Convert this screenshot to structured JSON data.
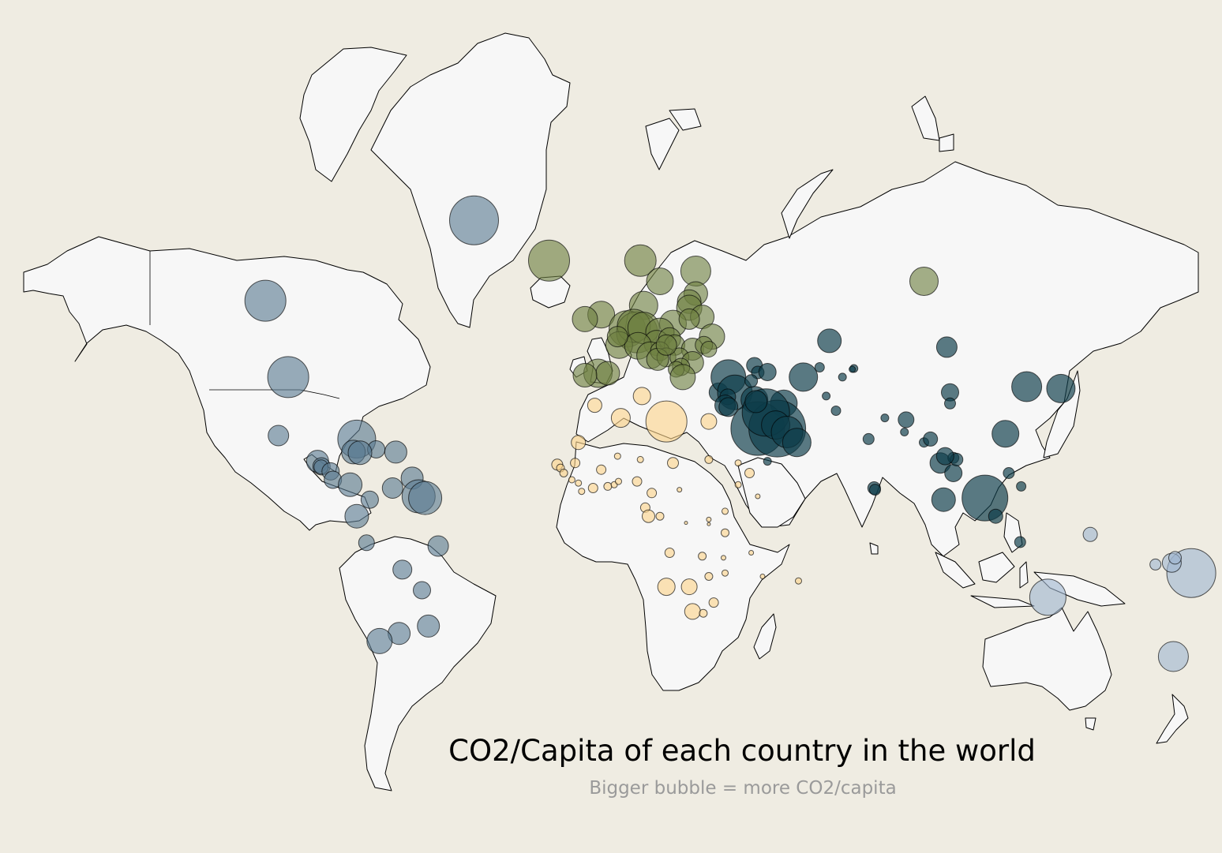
{
  "title": "CO2/Capita of each country in the world",
  "subtitle": "Bigger bubble = more CO2/capita",
  "colors": {
    "background": "#efece2",
    "land": "#f7f7f7",
    "americas": "#5a7a91",
    "europe": "#6d8040",
    "africa": "#fcd38a",
    "asia": "#0e3d4a",
    "oceania": "#9fb6d1"
  },
  "chart_data": {
    "type": "bubble-map",
    "title": "CO2/Capita of each country in the world",
    "subtitle": "Bigger bubble = more CO2/capita",
    "encoding": {
      "size": "CO2/capita (relative)",
      "color": "region"
    },
    "regions": [
      {
        "name": "americas",
        "bubbles": [
          {
            "lon": -42,
            "lat": 72,
            "v": 31
          },
          {
            "lon": -106,
            "lat": 57,
            "v": 26
          },
          {
            "lon": -99,
            "lat": 39,
            "v": 26
          },
          {
            "lon": -102,
            "lat": 23,
            "v": 13
          },
          {
            "lon": -78,
            "lat": 22,
            "v": 24
          },
          {
            "lon": -79,
            "lat": 18.2,
            "v": 15
          },
          {
            "lon": -72,
            "lat": 19,
            "v": 11
          },
          {
            "lon": -77,
            "lat": 18,
            "v": 15
          },
          {
            "lon": -66,
            "lat": 18.2,
            "v": 14
          },
          {
            "lon": -90,
            "lat": 15.5,
            "v": 14
          },
          {
            "lon": -88.8,
            "lat": 14,
            "v": 11
          },
          {
            "lon": -88.9,
            "lat": 13.8,
            "v": 9
          },
          {
            "lon": -86,
            "lat": 12.5,
            "v": 11
          },
          {
            "lon": -85.3,
            "lat": 10,
            "v": 11
          },
          {
            "lon": -80,
            "lat": 8.5,
            "v": 15
          },
          {
            "lon": -67,
            "lat": 7.5,
            "v": 13
          },
          {
            "lon": -61,
            "lat": 10.5,
            "v": 14
          },
          {
            "lon": -59,
            "lat": 5,
            "v": 21
          },
          {
            "lon": -57,
            "lat": 4.5,
            "v": 21
          },
          {
            "lon": -74,
            "lat": 4,
            "v": 11
          },
          {
            "lon": -78,
            "lat": -1,
            "v": 15
          },
          {
            "lon": -75,
            "lat": -9,
            "v": 10
          },
          {
            "lon": -53,
            "lat": -10,
            "v": 13
          },
          {
            "lon": -64,
            "lat": -17,
            "v": 12
          },
          {
            "lon": -58,
            "lat": -23,
            "v": 11
          },
          {
            "lon": -56,
            "lat": -33,
            "v": 14
          },
          {
            "lon": -65,
            "lat": -35,
            "v": 14
          },
          {
            "lon": -71,
            "lat": -37,
            "v": 16
          }
        ]
      },
      {
        "name": "europe",
        "bubbles": [
          {
            "lon": -19,
            "lat": 65,
            "v": 26
          },
          {
            "lon": 9,
            "lat": 65,
            "v": 20
          },
          {
            "lon": 15,
            "lat": 61,
            "v": 17
          },
          {
            "lon": 26,
            "lat": 63,
            "v": 19
          },
          {
            "lon": 96,
            "lat": 61,
            "v": 18
          },
          {
            "lon": 26,
            "lat": 58.5,
            "v": 15
          },
          {
            "lon": 24,
            "lat": 56.8,
            "v": 15
          },
          {
            "lon": 24,
            "lat": 55.5,
            "v": 16
          },
          {
            "lon": 28,
            "lat": 53.5,
            "v": 15
          },
          {
            "lon": 10,
            "lat": 56,
            "v": 18
          },
          {
            "lon": -3,
            "lat": 54,
            "v": 17
          },
          {
            "lon": -8,
            "lat": 53,
            "v": 16
          },
          {
            "lon": 19,
            "lat": 52,
            "v": 17
          },
          {
            "lon": 31,
            "lat": 49,
            "v": 16
          },
          {
            "lon": 5,
            "lat": 50.8,
            "v": 23
          },
          {
            "lon": 8,
            "lat": 50,
            "v": 26
          },
          {
            "lon": 7,
            "lat": 51.5,
            "v": 21
          },
          {
            "lon": 2.5,
            "lat": 47,
            "v": 17
          },
          {
            "lon": 10,
            "lat": 51,
            "v": 20
          },
          {
            "lon": 15,
            "lat": 50,
            "v": 18
          },
          {
            "lon": 14,
            "lat": 47.5,
            "v": 16
          },
          {
            "lon": 18,
            "lat": 48.5,
            "v": 14
          },
          {
            "lon": 19.5,
            "lat": 47,
            "v": 13
          },
          {
            "lon": 25,
            "lat": 46,
            "v": 14
          },
          {
            "lon": 28.5,
            "lat": 47,
            "v": 11
          },
          {
            "lon": 8.3,
            "lat": 46.8,
            "v": 17
          },
          {
            "lon": 12,
            "lat": 44.5,
            "v": 17
          },
          {
            "lon": 15,
            "lat": 45.5,
            "v": 12
          },
          {
            "lon": 17,
            "lat": 44,
            "v": 12
          },
          {
            "lon": 21,
            "lat": 44,
            "v": 12
          },
          {
            "lon": 25,
            "lat": 42.7,
            "v": 14
          },
          {
            "lon": 21.5,
            "lat": 41.6,
            "v": 11
          },
          {
            "lon": 20,
            "lat": 41,
            "v": 10
          },
          {
            "lon": -4,
            "lat": 40,
            "v": 18
          },
          {
            "lon": -1,
            "lat": 40,
            "v": 15
          },
          {
            "lon": -8,
            "lat": 39.5,
            "v": 15
          },
          {
            "lon": 22,
            "lat": 39,
            "v": 16
          },
          {
            "lon": 14.3,
            "lat": 43.5,
            "v": 14
          },
          {
            "lon": 24,
            "lat": 53,
            "v": 13
          },
          {
            "lon": 17,
            "lat": 47,
            "v": 13
          },
          {
            "lon": 2,
            "lat": 49,
            "v": 13
          },
          {
            "lon": 30,
            "lat": 46,
            "v": 10
          }
        ]
      },
      {
        "name": "africa",
        "bubbles": [
          {
            "lon": 17,
            "lat": 27,
            "v": 26
          },
          {
            "lon": -5,
            "lat": 31.5,
            "v": 9
          },
          {
            "lon": 3,
            "lat": 28,
            "v": 12
          },
          {
            "lon": 9.5,
            "lat": 34,
            "v": 11
          },
          {
            "lon": 30,
            "lat": 27,
            "v": 10
          },
          {
            "lon": -10,
            "lat": 21,
            "v": 9
          },
          {
            "lon": -11,
            "lat": 15,
            "v": 6
          },
          {
            "lon": -3,
            "lat": 13,
            "v": 6
          },
          {
            "lon": 2,
            "lat": 17,
            "v": 4
          },
          {
            "lon": 9,
            "lat": 16,
            "v": 4
          },
          {
            "lon": 19,
            "lat": 15,
            "v": 7
          },
          {
            "lon": 30,
            "lat": 16,
            "v": 5
          },
          {
            "lon": 39,
            "lat": 15,
            "v": 4
          },
          {
            "lon": 42.5,
            "lat": 12,
            "v": 6
          },
          {
            "lon": -16.5,
            "lat": 14.5,
            "v": 7
          },
          {
            "lon": -15.5,
            "lat": 13.5,
            "v": 5
          },
          {
            "lon": -14.5,
            "lat": 12,
            "v": 5
          },
          {
            "lon": -12,
            "lat": 10,
            "v": 4
          },
          {
            "lon": -10,
            "lat": 9,
            "v": 4
          },
          {
            "lon": -9,
            "lat": 6.5,
            "v": 4
          },
          {
            "lon": -5.5,
            "lat": 7.5,
            "v": 6
          },
          {
            "lon": -1,
            "lat": 8,
            "v": 5
          },
          {
            "lon": 1,
            "lat": 8.5,
            "v": 4
          },
          {
            "lon": 2.3,
            "lat": 9.5,
            "v": 4
          },
          {
            "lon": 8,
            "lat": 9.5,
            "v": 6
          },
          {
            "lon": 12.5,
            "lat": 6,
            "v": 6
          },
          {
            "lon": 39,
            "lat": 8.5,
            "v": 4
          },
          {
            "lon": 21,
            "lat": 7,
            "v": 3
          },
          {
            "lon": 10.5,
            "lat": 1.6,
            "v": 6
          },
          {
            "lon": 11.5,
            "lat": -1,
            "v": 8
          },
          {
            "lon": 15,
            "lat": -1,
            "v": 5
          },
          {
            "lon": 23,
            "lat": -3,
            "v": 2
          },
          {
            "lon": 30,
            "lat": -2,
            "v": 3
          },
          {
            "lon": 35,
            "lat": 0.5,
            "v": 4
          },
          {
            "lon": 45,
            "lat": 5,
            "v": 3
          },
          {
            "lon": 30,
            "lat": -3.4,
            "v": 2
          },
          {
            "lon": 35,
            "lat": -6,
            "v": 5
          },
          {
            "lon": 18,
            "lat": -12,
            "v": 6
          },
          {
            "lon": 28,
            "lat": -13,
            "v": 5
          },
          {
            "lon": 34.5,
            "lat": -13.5,
            "v": 3
          },
          {
            "lon": 35,
            "lat": -18,
            "v": 4
          },
          {
            "lon": 30,
            "lat": -19,
            "v": 5
          },
          {
            "lon": 17,
            "lat": -22,
            "v": 11
          },
          {
            "lon": 24,
            "lat": -22,
            "v": 10
          },
          {
            "lon": 25,
            "lat": -29,
            "v": 10
          },
          {
            "lon": 31.5,
            "lat": -26.5,
            "v": 6
          },
          {
            "lon": 28.3,
            "lat": -29.5,
            "v": 5
          },
          {
            "lon": 46.5,
            "lat": -19,
            "v": 3
          },
          {
            "lon": 57.5,
            "lat": -20.3,
            "v": 4
          },
          {
            "lon": 43,
            "lat": -12,
            "v": 3
          }
        ]
      },
      {
        "name": "asia",
        "bubbles": [
          {
            "lon": 67,
            "lat": 48,
            "v": 15
          },
          {
            "lon": 103,
            "lat": 46.5,
            "v": 13
          },
          {
            "lon": 104,
            "lat": 35,
            "v": 11
          },
          {
            "lon": 44,
            "lat": 42,
            "v": 10
          },
          {
            "lon": 45,
            "lat": 40.2,
            "v": 8
          },
          {
            "lon": 48,
            "lat": 40.3,
            "v": 11
          },
          {
            "lon": 59,
            "lat": 39,
            "v": 18
          },
          {
            "lon": 64,
            "lat": 41.5,
            "v": 6
          },
          {
            "lon": 71,
            "lat": 39,
            "v": 5
          },
          {
            "lon": 74.5,
            "lat": 41.2,
            "v": 5
          },
          {
            "lon": 74,
            "lat": 41,
            "v": 4
          },
          {
            "lon": 33,
            "lat": 35,
            "v": 12
          },
          {
            "lon": 36,
            "lat": 39,
            "v": 22
          },
          {
            "lon": 38,
            "lat": 35,
            "v": 22
          },
          {
            "lon": 35.8,
            "lat": 33.8,
            "v": 10
          },
          {
            "lon": 35,
            "lat": 31.5,
            "v": 13
          },
          {
            "lon": 36,
            "lat": 31,
            "v": 12
          },
          {
            "lon": 44,
            "lat": 33,
            "v": 17
          },
          {
            "lon": 53,
            "lat": 32,
            "v": 17
          },
          {
            "lon": 45,
            "lat": 25,
            "v": 34
          },
          {
            "lon": 51,
            "lat": 25,
            "v": 36
          },
          {
            "lon": 47.5,
            "lat": 29.5,
            "v": 30
          },
          {
            "lon": 50.5,
            "lat": 26,
            "v": 18
          },
          {
            "lon": 54,
            "lat": 24,
            "v": 20
          },
          {
            "lon": 57,
            "lat": 21,
            "v": 18
          },
          {
            "lon": 48,
            "lat": 15.5,
            "v": 5
          },
          {
            "lon": 66,
            "lat": 34,
            "v": 5
          },
          {
            "lon": 69,
            "lat": 30,
            "v": 6
          },
          {
            "lon": 79,
            "lat": 22,
            "v": 7
          },
          {
            "lon": 84,
            "lat": 28,
            "v": 5
          },
          {
            "lon": 90.5,
            "lat": 27.5,
            "v": 10
          },
          {
            "lon": 90,
            "lat": 24,
            "v": 5
          },
          {
            "lon": 96,
            "lat": 21,
            "v": 6
          },
          {
            "lon": 101,
            "lat": 15,
            "v": 13
          },
          {
            "lon": 105,
            "lat": 12,
            "v": 11
          },
          {
            "lon": 105,
            "lat": 16.5,
            "v": 7
          },
          {
            "lon": 106,
            "lat": 16,
            "v": 8
          },
          {
            "lon": 102.5,
            "lat": 17,
            "v": 11
          },
          {
            "lon": 80.7,
            "lat": 7.5,
            "v": 8
          },
          {
            "lon": 81,
            "lat": 7,
            "v": 7
          },
          {
            "lon": 102,
            "lat": 4,
            "v": 15
          },
          {
            "lon": 114.7,
            "lat": 4.5,
            "v": 29
          },
          {
            "lon": 118,
            "lat": -1,
            "v": 9
          },
          {
            "lon": 122,
            "lat": 12,
            "v": 7
          },
          {
            "lon": 121,
            "lat": 23.5,
            "v": 17
          },
          {
            "lon": 127.5,
            "lat": 36.5,
            "v": 19
          },
          {
            "lon": 138,
            "lat": 36,
            "v": 18
          },
          {
            "lon": 125.8,
            "lat": 8,
            "v": 6
          },
          {
            "lon": 125.5,
            "lat": -8.8,
            "v": 7
          },
          {
            "lon": 98,
            "lat": 22,
            "v": 9
          },
          {
            "lon": 104,
            "lat": 32,
            "v": 7
          },
          {
            "lon": 43,
            "lat": 38,
            "v": 8
          },
          {
            "lon": 44.5,
            "lat": 32.5,
            "v": 14
          }
        ]
      },
      {
        "name": "oceania",
        "bubbles": [
          {
            "lon": 134,
            "lat": -25,
            "v": 23
          },
          {
            "lon": 172.5,
            "lat": -41,
            "v": 19
          },
          {
            "lon": 178,
            "lat": -18,
            "v": 31
          },
          {
            "lon": 172,
            "lat": -15,
            "v": 12
          },
          {
            "lon": 167,
            "lat": -15.5,
            "v": 7
          },
          {
            "lon": 173,
            "lat": -13.5,
            "v": 8
          },
          {
            "lon": 147,
            "lat": -6.5,
            "v": 9
          }
        ]
      }
    ]
  }
}
